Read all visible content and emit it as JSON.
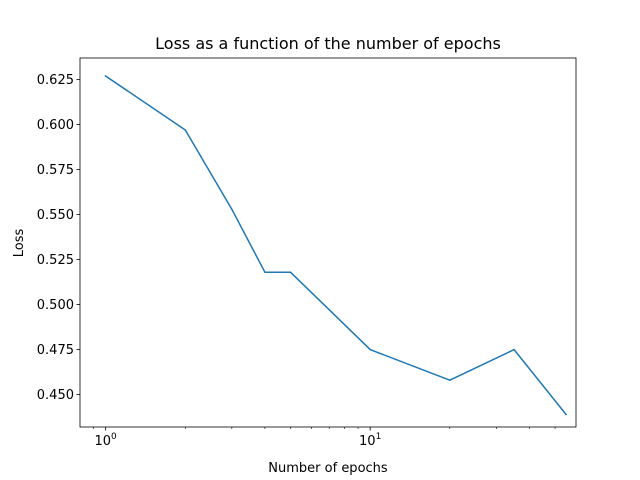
{
  "chart_data": {
    "type": "line",
    "title": "Loss as a function of the number of epochs",
    "xlabel": "Number of epochs",
    "ylabel": "Loss",
    "xscale": "log",
    "grid": false,
    "x_ticks": [
      {
        "value": 1,
        "base": "10",
        "exp": "0"
      },
      {
        "value": 10,
        "base": "10",
        "exp": "1"
      }
    ],
    "y_ticks": [
      "0.450",
      "0.475",
      "0.500",
      "0.525",
      "0.550",
      "0.575",
      "0.600",
      "0.625"
    ],
    "xlim": [
      0.8,
      60
    ],
    "ylim": [
      0.432,
      0.637
    ],
    "series": [
      {
        "color": "#1f77b4",
        "x": [
          1,
          2,
          3,
          4,
          5,
          10,
          20,
          35,
          55
        ],
        "y": [
          0.627,
          0.597,
          0.553,
          0.518,
          0.518,
          0.475,
          0.458,
          0.475,
          0.439
        ]
      }
    ]
  }
}
